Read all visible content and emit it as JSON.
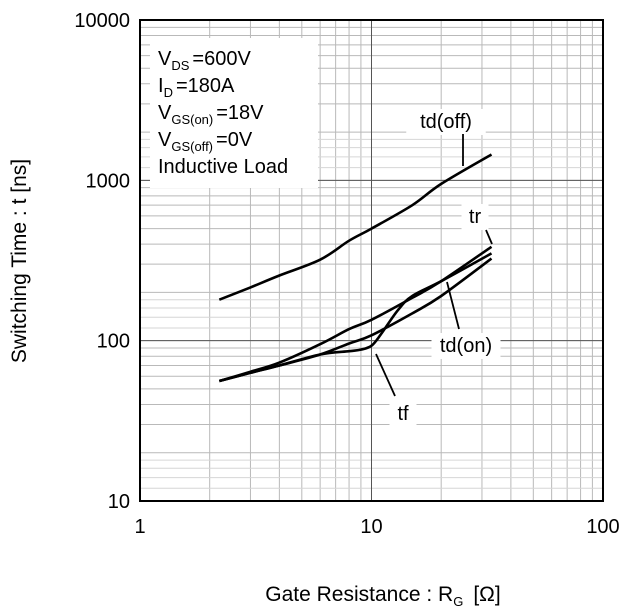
{
  "chart_data": {
    "type": "line",
    "xscale": "log",
    "yscale": "log",
    "xlim": [
      1,
      100
    ],
    "ylim": [
      10,
      10000
    ],
    "grid": true,
    "xlabel": "Gate Resistance : R",
    "xlabel_sub": "G",
    "xlabel_unit": "[Ω]",
    "ylabel": "Switching Time : t [ns]",
    "x_ticks": [
      {
        "value": 1,
        "label": "1"
      },
      {
        "value": 10,
        "label": "10"
      },
      {
        "value": 100,
        "label": "100"
      }
    ],
    "y_ticks": [
      {
        "value": 10,
        "label": "10"
      },
      {
        "value": 100,
        "label": "100"
      },
      {
        "value": 1000,
        "label": "1000"
      },
      {
        "value": 10000,
        "label": "10000"
      }
    ],
    "conditions": [
      {
        "main": "V",
        "sub": "DS",
        "value": "=600V"
      },
      {
        "main": "I",
        "sub": "D",
        "value": "=180A"
      },
      {
        "main": "V",
        "sub": "GS(on)",
        "value": "=18V"
      },
      {
        "main": "V",
        "sub": "GS(off)",
        "value": "=0V"
      },
      {
        "main": "Inductive Load",
        "sub": "",
        "value": ""
      }
    ],
    "series": [
      {
        "name": "td(off)",
        "x": [
          2.2,
          3,
          4,
          6,
          8,
          10,
          15,
          20,
          33
        ],
        "y": [
          180,
          215,
          255,
          320,
          420,
          500,
          700,
          950,
          1450
        ]
      },
      {
        "name": "tr",
        "x": [
          2.2,
          3,
          4,
          6,
          8,
          10,
          15,
          20,
          33
        ],
        "y": [
          56,
          64,
          73,
          95,
          118,
          135,
          185,
          235,
          385
        ]
      },
      {
        "name": "td(on)",
        "x": [
          2.2,
          3,
          4,
          6,
          8,
          10,
          15,
          20,
          33
        ],
        "y": [
          56,
          63,
          70,
          82,
          96,
          108,
          148,
          190,
          325
        ]
      },
      {
        "name": "tf",
        "x": [
          2.2,
          3,
          4,
          6,
          8,
          9,
          10,
          11,
          13,
          15,
          20,
          33
        ],
        "y": [
          56,
          63,
          70,
          82,
          86,
          88,
          93,
          110,
          155,
          190,
          235,
          350
        ]
      }
    ],
    "annotations": [
      {
        "series": "td(off)",
        "text": "td(off)"
      },
      {
        "series": "tr",
        "text": "tr"
      },
      {
        "series": "td(on)",
        "text": "td(on)"
      },
      {
        "series": "tf",
        "text": "tf"
      }
    ]
  }
}
